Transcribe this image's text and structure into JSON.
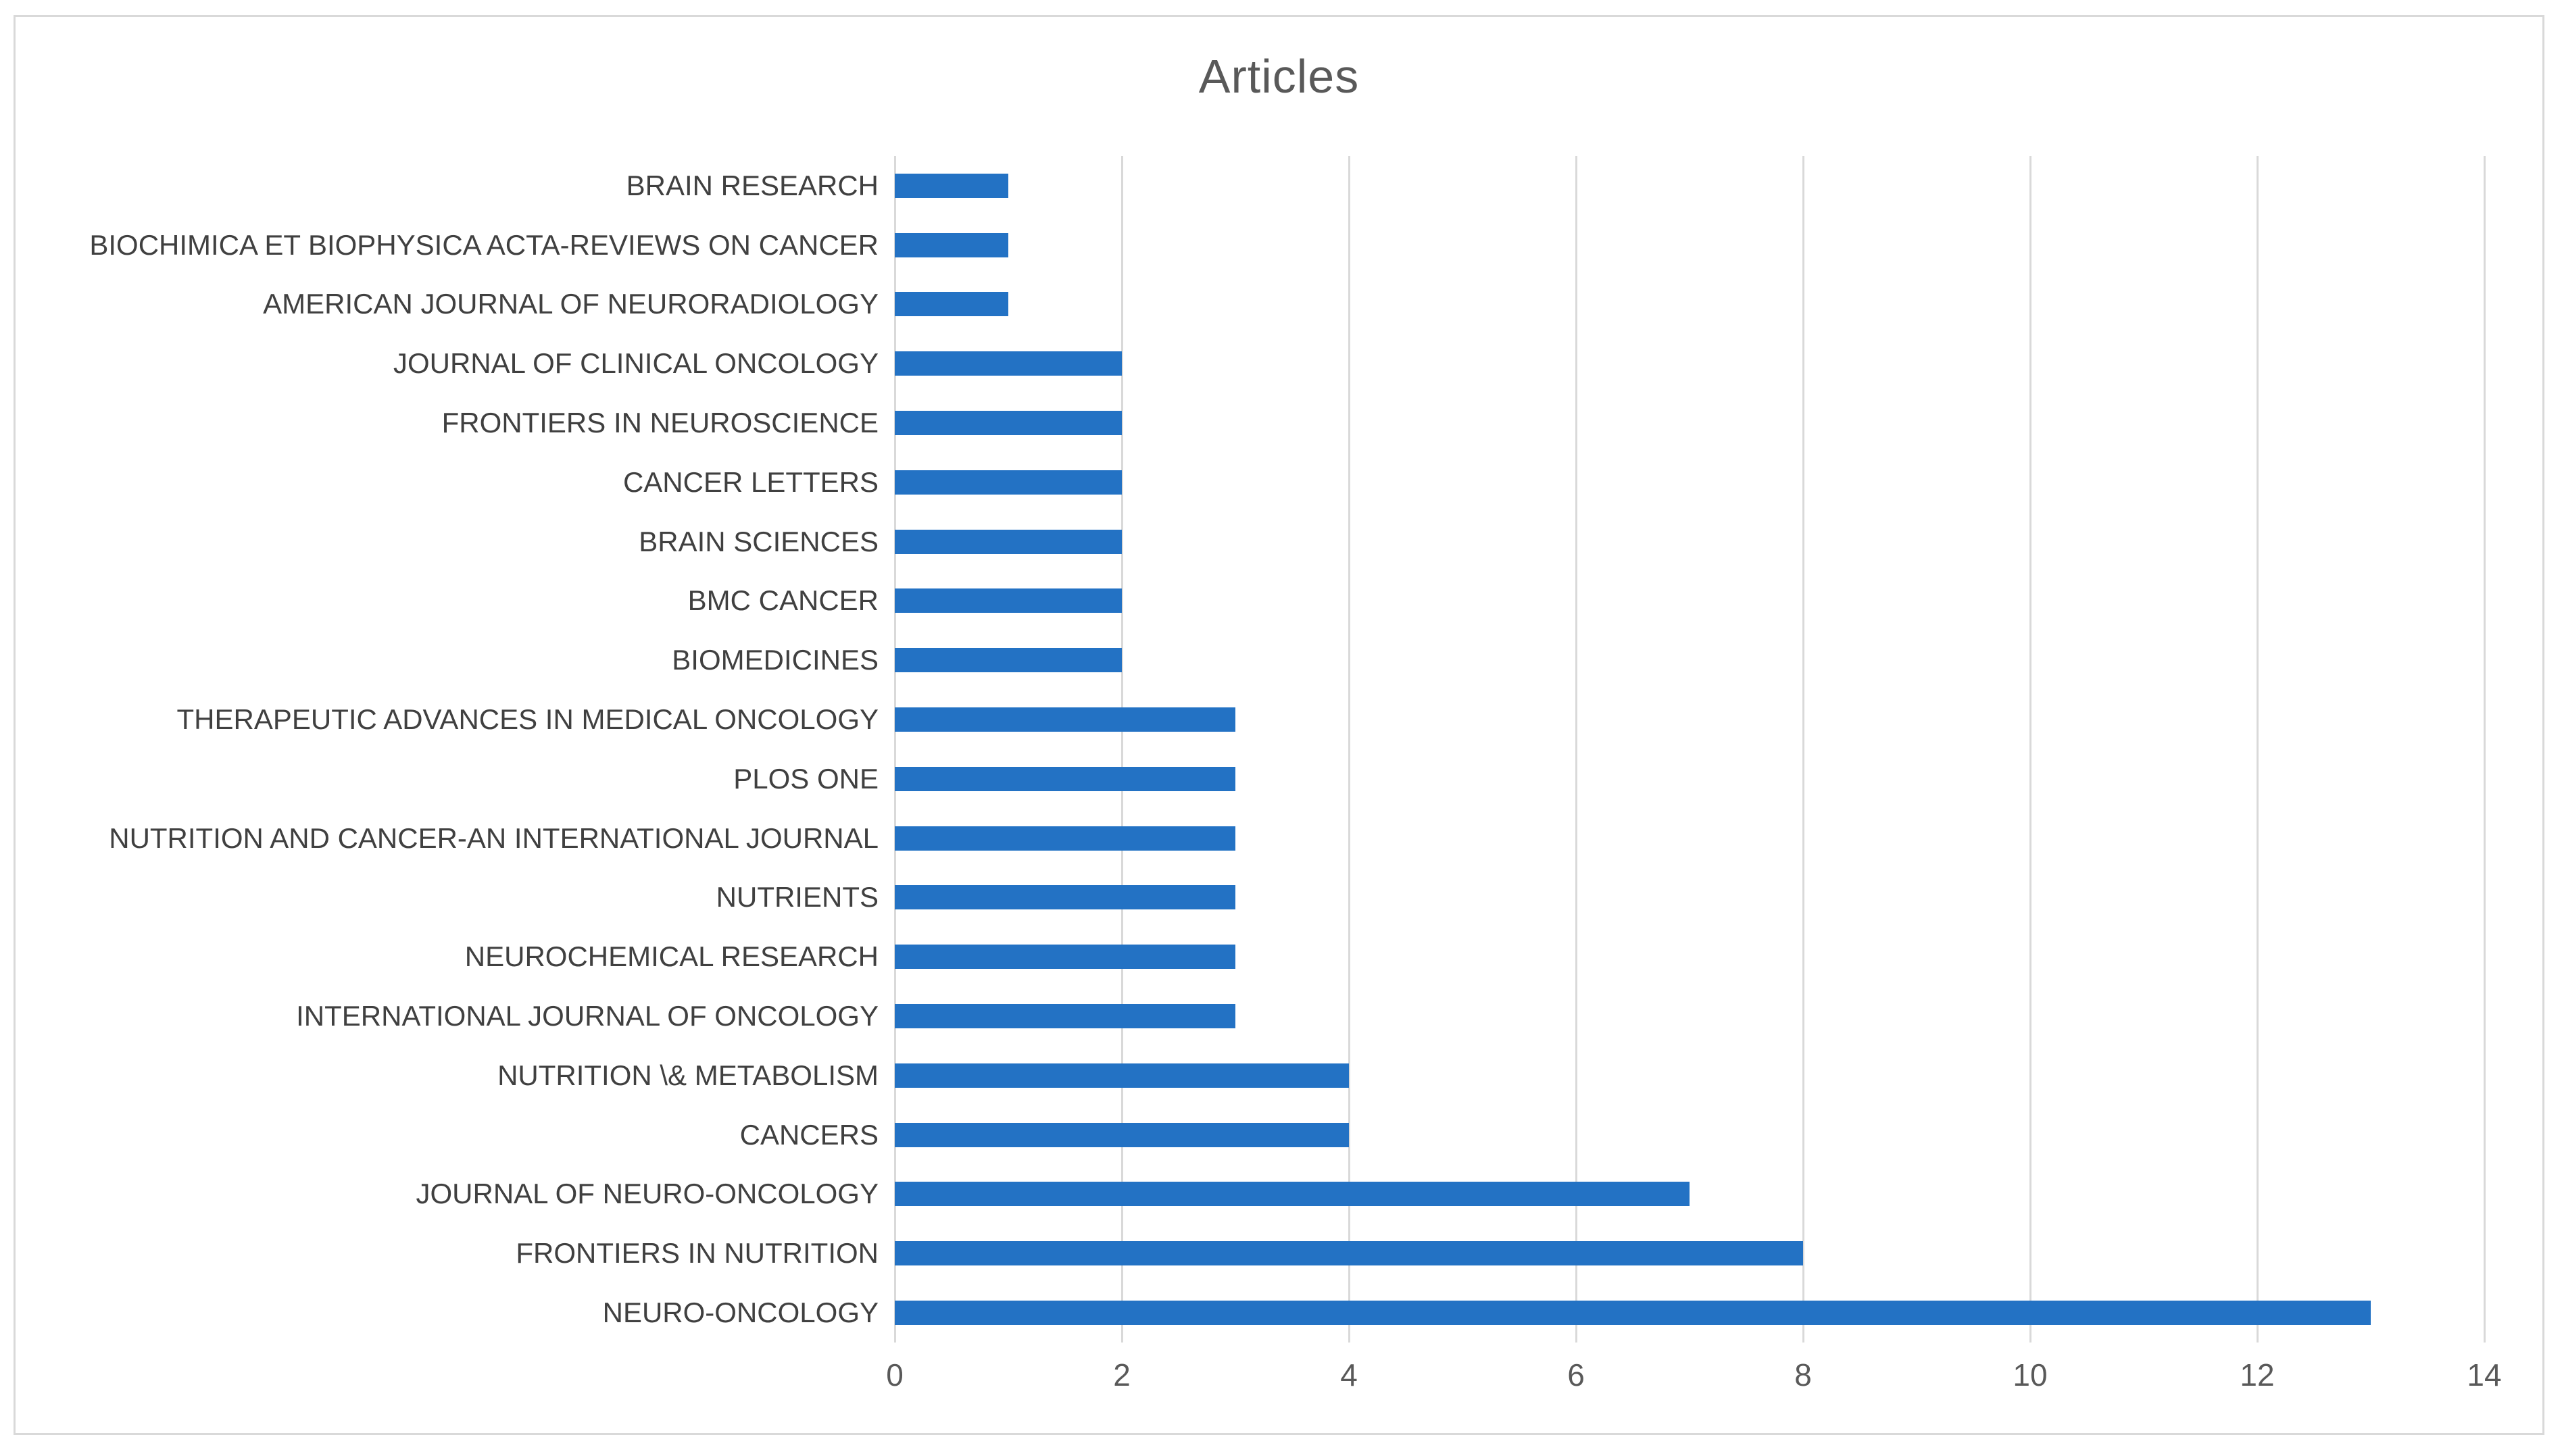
{
  "figure": {
    "background": "#ffffff",
    "border_color": "#d9d9d9"
  },
  "chart_data": {
    "type": "bar",
    "orientation": "horizontal",
    "title": "Articles",
    "categories": [
      "BRAIN RESEARCH",
      "BIOCHIMICA ET BIOPHYSICA ACTA-REVIEWS ON CANCER",
      "AMERICAN JOURNAL OF NEURORADIOLOGY",
      "JOURNAL OF CLINICAL ONCOLOGY",
      "FRONTIERS IN NEUROSCIENCE",
      "CANCER LETTERS",
      "BRAIN SCIENCES",
      "BMC CANCER",
      "BIOMEDICINES",
      "THERAPEUTIC ADVANCES IN MEDICAL ONCOLOGY",
      "PLOS ONE",
      "NUTRITION AND CANCER-AN INTERNATIONAL JOURNAL",
      "NUTRIENTS",
      "NEUROCHEMICAL RESEARCH",
      "INTERNATIONAL JOURNAL OF ONCOLOGY",
      "NUTRITION \\& METABOLISM",
      "CANCERS",
      "JOURNAL OF NEURO-ONCOLOGY",
      "FRONTIERS IN NUTRITION",
      "NEURO-ONCOLOGY"
    ],
    "values": [
      1,
      1,
      1,
      2,
      2,
      2,
      2,
      2,
      2,
      3,
      3,
      3,
      3,
      3,
      3,
      4,
      4,
      7,
      8,
      13
    ],
    "xlabel": "",
    "ylabel": "",
    "xlim": [
      0,
      14
    ],
    "x_ticks": [
      0,
      2,
      4,
      6,
      8,
      10,
      12,
      14
    ],
    "grid": "vertical",
    "legend": "none",
    "bar_color": "#2372c4",
    "gridline_color": "#d9d9d9",
    "tick_label_color": "#595959",
    "category_label_color": "#404040",
    "title_color": "#595959"
  }
}
